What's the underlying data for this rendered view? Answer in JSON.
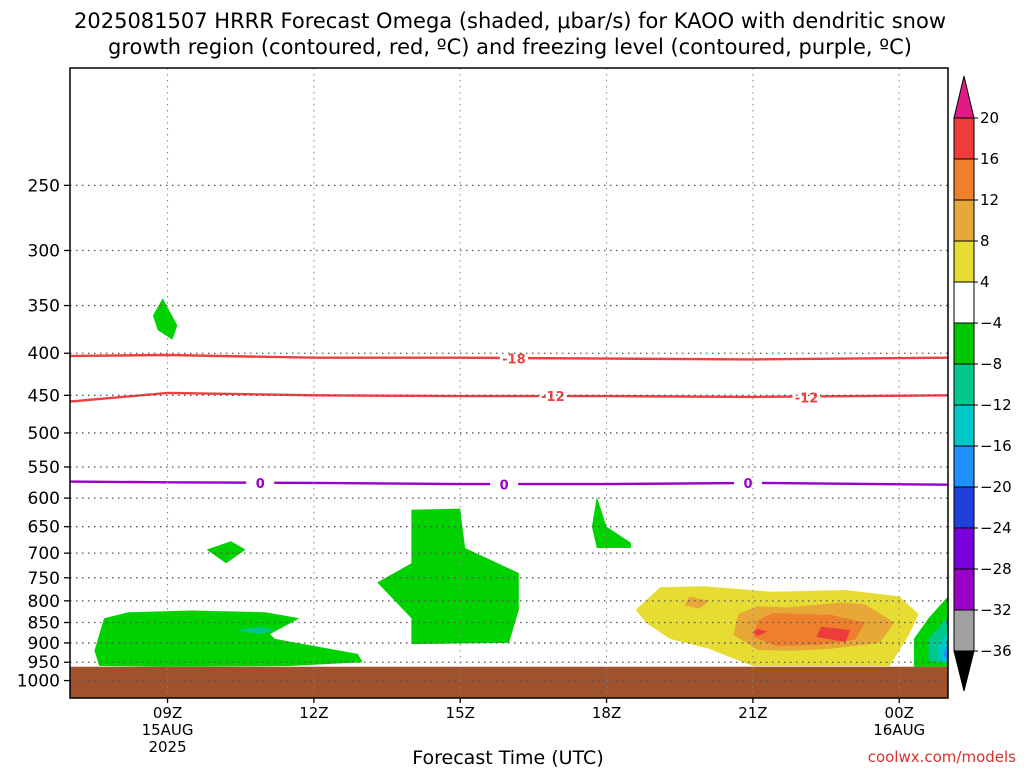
{
  "header": {
    "title_line1": "2025081507 HRRR Forecast Omega (shaded, μbar/s) for KAOO with dendritic snow",
    "title_line2": "growth region (contoured, red, ºC) and freezing level (contoured, purple, ºC)"
  },
  "footer": {
    "credit": "coolwx.com/models"
  },
  "chart_data": {
    "type": "area",
    "title": "2025081507 HRRR Forecast Omega (shaded, μbar/s) for KAOO with dendritic snow growth region (contoured, red, ºC) and freezing level (contoured, purple, ºC)",
    "xlabel": "Forecast Time (UTC)",
    "ylabel": "",
    "x_ticks": [
      {
        "hour": 9,
        "lines": [
          "09Z",
          "15AUG",
          "2025"
        ]
      },
      {
        "hour": 12,
        "lines": [
          "12Z"
        ]
      },
      {
        "hour": 15,
        "lines": [
          "15Z"
        ]
      },
      {
        "hour": 18,
        "lines": [
          "18Z"
        ]
      },
      {
        "hour": 21,
        "lines": [
          "21Z"
        ]
      },
      {
        "hour": 24,
        "lines": [
          "00Z",
          "16AUG"
        ]
      }
    ],
    "xlim_hours": [
      7,
      25
    ],
    "ylim": [
      1050,
      180
    ],
    "y_ticks": [
      250,
      300,
      350,
      400,
      450,
      500,
      550,
      600,
      650,
      700,
      750,
      800,
      850,
      900,
      950,
      1000
    ],
    "grid": true,
    "ground_pressure": 962,
    "ground_color": "#a0522d",
    "contours": [
      {
        "level": "-18",
        "color": "#ee4040",
        "points": [
          [
            7,
            403
          ],
          [
            9,
            402
          ],
          [
            12,
            405
          ],
          [
            15,
            405
          ],
          [
            18,
            406
          ],
          [
            21,
            407
          ],
          [
            25,
            405
          ]
        ],
        "labels": [
          [
            16.1,
            406
          ]
        ]
      },
      {
        "level": "-12",
        "color": "#ee4040",
        "points": [
          [
            7,
            458
          ],
          [
            9,
            447
          ],
          [
            12,
            450
          ],
          [
            15,
            451
          ],
          [
            18,
            451
          ],
          [
            21,
            452
          ],
          [
            25,
            450
          ]
        ],
        "labels": [
          [
            16.9,
            451
          ],
          [
            22.1,
            453
          ]
        ]
      },
      {
        "level": "0",
        "color": "#9a00c8",
        "points": [
          [
            7,
            573
          ],
          [
            9,
            574
          ],
          [
            12,
            575
          ],
          [
            15,
            577
          ],
          [
            18,
            577
          ],
          [
            21,
            575
          ],
          [
            25,
            578
          ]
        ],
        "labels": [
          [
            10.9,
            575
          ],
          [
            15.9,
            578
          ],
          [
            20.9,
            575
          ]
        ]
      }
    ],
    "colorbar": {
      "levels": [
        20,
        16,
        12,
        8,
        4,
        -4,
        -8,
        -12,
        -16,
        -20,
        -24,
        -28,
        -32,
        -36
      ],
      "colors": [
        "#e01b84",
        "#ee3c3c",
        "#ee7f2d",
        "#e8a838",
        "#e6dc32",
        "#ffffff",
        "#00c800",
        "#00c88c",
        "#00c8c8",
        "#1e90ff",
        "#2040dc",
        "#7a00dc",
        "#9a00c8",
        "#a0a0a0",
        "#000000"
      ]
    },
    "shaded_regions": [
      {
        "value_class": "-4 to -8",
        "color": "#00d200",
        "points": [
          [
            7.7,
            840
          ],
          [
            8.2,
            826
          ],
          [
            9.5,
            822
          ],
          [
            11,
            826
          ],
          [
            11.7,
            840
          ],
          [
            11.1,
            878
          ],
          [
            11.2,
            890
          ],
          [
            12.9,
            928
          ],
          [
            13.0,
            950
          ],
          [
            11.5,
            960
          ],
          [
            9,
            962
          ],
          [
            7.6,
            960
          ],
          [
            7.5,
            920
          ]
        ]
      },
      {
        "value_class": "-8 to -12",
        "color": "#00c88c",
        "points": [
          [
            10.9,
            860
          ],
          [
            11.2,
            869
          ],
          [
            10.9,
            878
          ],
          [
            10.4,
            869
          ]
        ]
      },
      {
        "value_class": "-4 to -8",
        "color": "#00d200",
        "points": [
          [
            8.9,
            343
          ],
          [
            9.2,
            370
          ],
          [
            9.1,
            385
          ],
          [
            8.8,
            375
          ],
          [
            8.7,
            360
          ]
        ]
      },
      {
        "value_class": "-4 to -8",
        "color": "#00d200",
        "points": [
          [
            9.8,
            693
          ],
          [
            10.3,
            677
          ],
          [
            10.6,
            693
          ],
          [
            10.2,
            720
          ]
        ]
      },
      {
        "value_class": "-4 to -8",
        "color": "#00d200",
        "points": [
          [
            14.0,
            620
          ],
          [
            15.0,
            618
          ],
          [
            15.1,
            690
          ],
          [
            16.2,
            740
          ],
          [
            16.2,
            820
          ],
          [
            16.0,
            900
          ],
          [
            14.0,
            903
          ],
          [
            14.0,
            840
          ],
          [
            13.3,
            760
          ],
          [
            14.0,
            720
          ]
        ]
      },
      {
        "value_class": "-4 to -8",
        "color": "#00d200",
        "points": [
          [
            17.8,
            598
          ],
          [
            18.0,
            650
          ],
          [
            18.5,
            680
          ],
          [
            18.5,
            690
          ],
          [
            17.8,
            690
          ],
          [
            17.7,
            650
          ]
        ]
      },
      {
        "value_class": "4 to 8",
        "color": "#e6dc32",
        "points": [
          [
            19.1,
            770
          ],
          [
            20,
            768
          ],
          [
            21.4,
            780
          ],
          [
            22.9,
            776
          ],
          [
            24,
            790
          ],
          [
            24.4,
            830
          ],
          [
            24.2,
            880
          ],
          [
            23.8,
            960
          ],
          [
            21.0,
            960
          ],
          [
            20.6,
            940
          ],
          [
            20.1,
            915
          ],
          [
            19.3,
            890
          ],
          [
            18.8,
            850
          ],
          [
            18.6,
            820
          ]
        ]
      },
      {
        "value_class": "8 to 12",
        "color": "#e8a838",
        "points": [
          [
            19.7,
            790
          ],
          [
            20.1,
            800
          ],
          [
            19.9,
            818
          ],
          [
            19.6,
            810
          ]
        ]
      },
      {
        "value_class": "8 to 12",
        "color": "#e8a838",
        "points": [
          [
            21.1,
            812
          ],
          [
            21.7,
            815
          ],
          [
            22.8,
            804
          ],
          [
            23.3,
            808
          ],
          [
            23.9,
            850
          ],
          [
            23.6,
            900
          ],
          [
            22.6,
            915
          ],
          [
            21.8,
            920
          ],
          [
            21.1,
            918
          ],
          [
            20.6,
            880
          ],
          [
            20.7,
            830
          ]
        ]
      },
      {
        "value_class": "12 to 16",
        "color": "#ee7f2d",
        "points": [
          [
            21.4,
            828
          ],
          [
            22.6,
            832
          ],
          [
            23.3,
            850
          ],
          [
            23.1,
            892
          ],
          [
            22.4,
            905
          ],
          [
            21.5,
            908
          ],
          [
            21.0,
            885
          ],
          [
            21.1,
            845
          ]
        ]
      },
      {
        "value_class": "16 to 20",
        "color": "#ee3c3c",
        "points": [
          [
            22.4,
            860
          ],
          [
            23.0,
            868
          ],
          [
            22.9,
            898
          ],
          [
            22.3,
            885
          ]
        ]
      },
      {
        "value_class": "16 to 20",
        "color": "#ee3c3c",
        "points": [
          [
            21.1,
            865
          ],
          [
            21.3,
            872
          ],
          [
            21.1,
            882
          ],
          [
            21.0,
            873
          ]
        ]
      },
      {
        "value_class": "-4 to -8",
        "color": "#00d200",
        "points": [
          [
            25,
            790
          ],
          [
            25,
            962
          ],
          [
            24.3,
            962
          ],
          [
            24.3,
            890
          ],
          [
            24.6,
            840
          ]
        ]
      },
      {
        "value_class": "-8 to -12",
        "color": "#00c88c",
        "points": [
          [
            25,
            835
          ],
          [
            25,
            955
          ],
          [
            24.6,
            945
          ],
          [
            24.6,
            890
          ]
        ]
      },
      {
        "value_class": "-12 to -16",
        "color": "#00c8c8",
        "points": [
          [
            25,
            875
          ],
          [
            25,
            950
          ],
          [
            24.8,
            940
          ],
          [
            24.8,
            905
          ]
        ]
      },
      {
        "value_class": "-16 to -20",
        "color": "#1e90ff",
        "points": [
          [
            25,
            900
          ],
          [
            25,
            948
          ],
          [
            24.9,
            930
          ]
        ]
      }
    ]
  }
}
